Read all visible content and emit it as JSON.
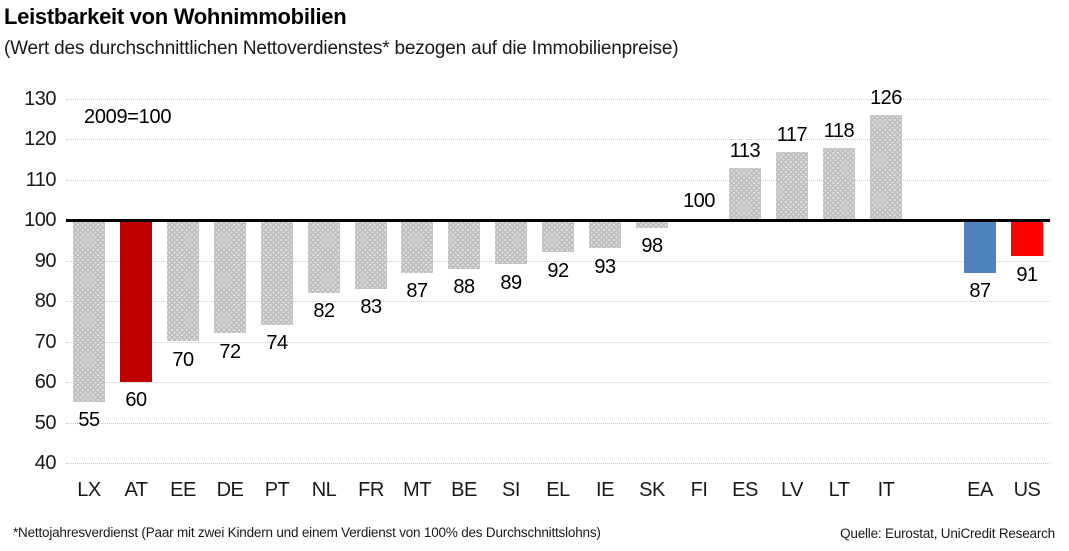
{
  "chart_data": {
    "type": "bar",
    "title": "Leistbarkeit von Wohnimmobilien",
    "subtitle": "(Wert des durchschnittlichen Nettoverdienstes* bezogen auf die Immobilienpreise)",
    "annotation": "2009=100",
    "baseline": 100,
    "ylim": [
      40,
      130
    ],
    "yticks": [
      40,
      50,
      60,
      70,
      80,
      90,
      100,
      110,
      120,
      130
    ],
    "grid": "on",
    "categories": [
      "LX",
      "AT",
      "EE",
      "DE",
      "PT",
      "NL",
      "FR",
      "MT",
      "BE",
      "SI",
      "EL",
      "IE",
      "SK",
      "FI",
      "ES",
      "LV",
      "LT",
      "IT",
      "",
      "EA",
      "US"
    ],
    "values": [
      55,
      60,
      70,
      72,
      74,
      82,
      83,
      87,
      88,
      89,
      92,
      93,
      98,
      100,
      113,
      117,
      118,
      126,
      null,
      87,
      91
    ],
    "bar_colors": [
      "#BFBFBF",
      "#C00000",
      "#BFBFBF",
      "#BFBFBF",
      "#BFBFBF",
      "#BFBFBF",
      "#BFBFBF",
      "#BFBFBF",
      "#BFBFBF",
      "#BFBFBF",
      "#BFBFBF",
      "#BFBFBF",
      "#BFBFBF",
      "#BFBFBF",
      "#BFBFBF",
      "#BFBFBF",
      "#BFBFBF",
      "#BFBFBF",
      null,
      "#4F81BD",
      "#FF0000"
    ],
    "color_legend": {
      "default_gray": "#BFBFBF",
      "highlight_austria": "#C00000",
      "highlight_euro_area": "#4F81BD",
      "highlight_us": "#FF0000",
      "baseline_line": "#000000"
    },
    "footnote": "*Nettojahresverdienst (Paar mit zwei Kindern und einem Verdienst von 100% des Durchschnittslohns)",
    "source": "Quelle: Eurostat, UniCredit Research"
  }
}
